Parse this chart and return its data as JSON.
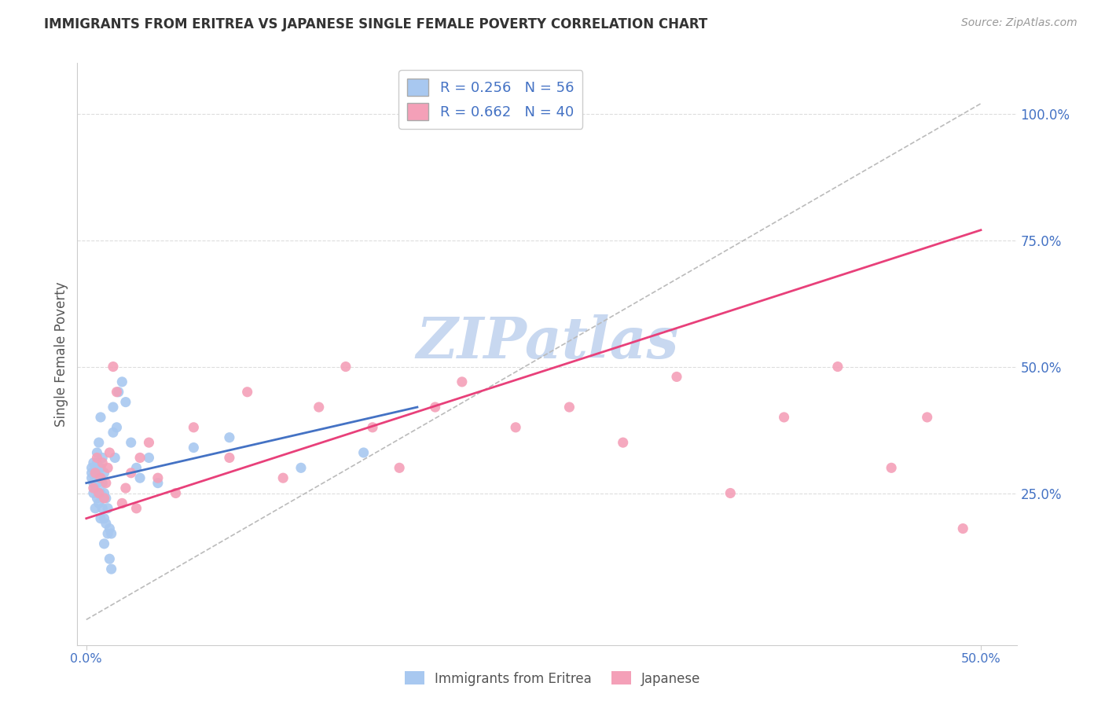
{
  "title": "IMMIGRANTS FROM ERITREA VS JAPANESE SINGLE FEMALE POVERTY CORRELATION CHART",
  "source": "Source: ZipAtlas.com",
  "ylabel": "Single Female Poverty",
  "legend_label1": "Immigrants from Eritrea",
  "legend_label2": "Japanese",
  "R1": 0.256,
  "N1": 56,
  "R2": 0.662,
  "N2": 40,
  "xlim": [
    -0.005,
    0.52
  ],
  "ylim": [
    -0.05,
    1.1
  ],
  "ytick_positions_right": [
    0.25,
    0.5,
    0.75,
    1.0
  ],
  "color_eritrea": "#A8C8F0",
  "color_japanese": "#F4A0B8",
  "color_eritrea_line": "#4472C4",
  "color_japanese_line": "#E8407A",
  "watermark_color": "#C8D8F0",
  "grid_color": "#DDDDDD",
  "title_color": "#333333",
  "source_color": "#999999",
  "right_label_color": "#4472C4",
  "eritrea_line_x": [
    0.0,
    0.185
  ],
  "eritrea_line_y": [
    0.27,
    0.42
  ],
  "japanese_line_x": [
    0.0,
    0.5
  ],
  "japanese_line_y": [
    0.2,
    0.77
  ],
  "diag_line_x": [
    0.0,
    0.5
  ],
  "diag_line_y": [
    0.0,
    1.02
  ],
  "scatter_eritrea_x": [
    0.003,
    0.003,
    0.003,
    0.004,
    0.004,
    0.004,
    0.005,
    0.005,
    0.005,
    0.005,
    0.006,
    0.006,
    0.006,
    0.006,
    0.006,
    0.007,
    0.007,
    0.007,
    0.007,
    0.007,
    0.008,
    0.008,
    0.008,
    0.008,
    0.008,
    0.009,
    0.009,
    0.009,
    0.01,
    0.01,
    0.01,
    0.01,
    0.011,
    0.011,
    0.012,
    0.012,
    0.013,
    0.013,
    0.014,
    0.014,
    0.015,
    0.015,
    0.016,
    0.017,
    0.018,
    0.02,
    0.022,
    0.025,
    0.028,
    0.03,
    0.035,
    0.04,
    0.06,
    0.08,
    0.12,
    0.155
  ],
  "scatter_eritrea_y": [
    0.28,
    0.29,
    0.3,
    0.25,
    0.27,
    0.31,
    0.22,
    0.26,
    0.28,
    0.3,
    0.24,
    0.27,
    0.29,
    0.31,
    0.33,
    0.23,
    0.25,
    0.28,
    0.3,
    0.35,
    0.2,
    0.25,
    0.28,
    0.3,
    0.4,
    0.22,
    0.27,
    0.32,
    0.15,
    0.2,
    0.25,
    0.29,
    0.19,
    0.24,
    0.17,
    0.22,
    0.12,
    0.18,
    0.1,
    0.17,
    0.37,
    0.42,
    0.32,
    0.38,
    0.45,
    0.47,
    0.43,
    0.35,
    0.3,
    0.28,
    0.32,
    0.27,
    0.34,
    0.36,
    0.3,
    0.33
  ],
  "scatter_japanese_x": [
    0.004,
    0.005,
    0.006,
    0.007,
    0.008,
    0.009,
    0.01,
    0.011,
    0.012,
    0.013,
    0.015,
    0.017,
    0.02,
    0.022,
    0.025,
    0.028,
    0.03,
    0.035,
    0.04,
    0.05,
    0.06,
    0.08,
    0.09,
    0.11,
    0.13,
    0.145,
    0.16,
    0.175,
    0.195,
    0.21,
    0.24,
    0.27,
    0.3,
    0.33,
    0.36,
    0.39,
    0.42,
    0.45,
    0.47,
    0.49
  ],
  "scatter_japanese_y": [
    0.26,
    0.29,
    0.32,
    0.25,
    0.28,
    0.31,
    0.24,
    0.27,
    0.3,
    0.33,
    0.5,
    0.45,
    0.23,
    0.26,
    0.29,
    0.22,
    0.32,
    0.35,
    0.28,
    0.25,
    0.38,
    0.32,
    0.45,
    0.28,
    0.42,
    0.5,
    0.38,
    0.3,
    0.42,
    0.47,
    0.38,
    0.42,
    0.35,
    0.48,
    0.25,
    0.4,
    0.5,
    0.3,
    0.4,
    0.18
  ]
}
